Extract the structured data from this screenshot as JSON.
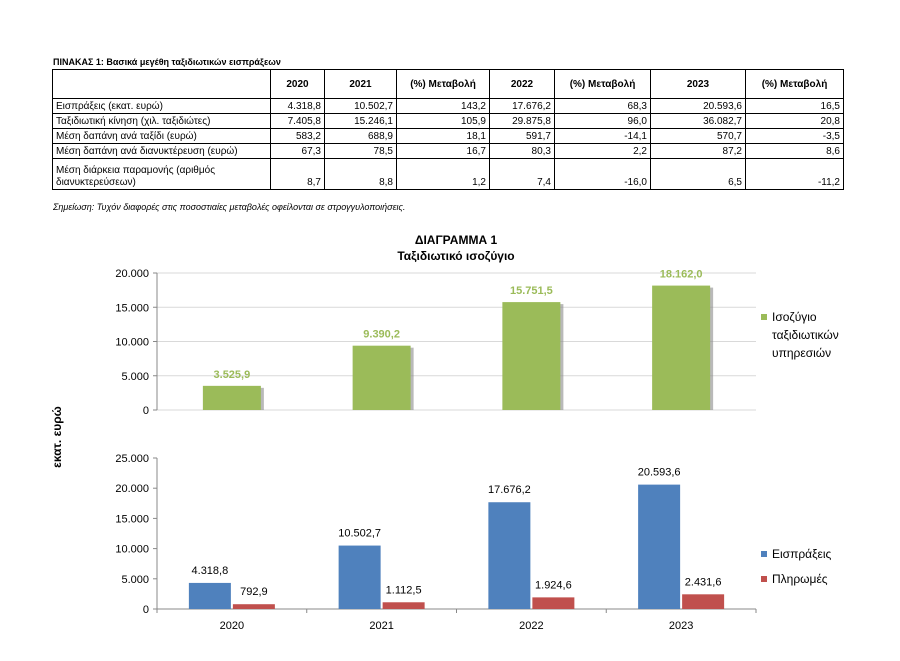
{
  "table": {
    "title": "ΠΙΝΑΚΑΣ 1: Βασικά μεγέθη ταξιδιωτικών εισπράξεων",
    "headers": [
      "",
      "2020",
      "2021",
      "(%) Μεταβολή",
      "2022",
      "(%) Μεταβολή",
      "2023",
      "(%) Μεταβολή"
    ],
    "rows": [
      {
        "label": "Εισπράξεις (εκατ. ευρώ)",
        "cells": [
          "4.318,8",
          "10.502,7",
          "143,2",
          "17.676,2",
          "68,3",
          "20.593,6",
          "16,5"
        ]
      },
      {
        "label": "Ταξιδιωτική κίνηση (χιλ. ταξιδιώτες)",
        "cells": [
          "7.405,8",
          "15.246,1",
          "105,9",
          "29.875,8",
          "96,0",
          "36.082,7",
          "20,8"
        ]
      },
      {
        "label": "Μέση δαπάνη ανά ταξίδι (ευρώ)",
        "cells": [
          "583,2",
          "688,9",
          "18,1",
          "591,7",
          "-14,1",
          "570,7",
          "-3,5"
        ]
      },
      {
        "label": "Μέση δαπάνη ανά διανυκτέρευση (ευρώ)",
        "cells": [
          "67,3",
          "78,5",
          "16,7",
          "80,3",
          "2,2",
          "87,2",
          "8,6"
        ]
      },
      {
        "label": "Μέση διάρκεια παραμονής (αριθμός διανυκτερεύσεων)",
        "cells": [
          "8,7",
          "8,8",
          "1,2",
          "7,4",
          "-16,0",
          "6,5",
          "-11,2"
        ]
      }
    ],
    "note": "Σημείωση: Τυχόν διαφορές στις ποσοστιαίες μεταβολές οφείλονται σε στρογγυλοποιήσεις."
  },
  "chart_data": [
    {
      "type": "bar",
      "title": "ΔΙΑΓΡΑΜΜΑ 1",
      "subtitle": "Ταξιδιωτικό ισοζύγιο",
      "ylabel": "εκατ. ευρώ",
      "categories": [
        "2020",
        "2021",
        "2022",
        "2023"
      ],
      "series": [
        {
          "name": "Ισοζύγιο ταξιδιωτικών υπηρεσιών",
          "values": [
            3525.9,
            9390.2,
            15751.5,
            18162.0
          ],
          "labels": [
            "3.525,9",
            "9.390,2",
            "15.751,5",
            "18.162,0"
          ],
          "color": "#9bbb59"
        }
      ],
      "ylim": [
        0,
        20000
      ],
      "yticks": [
        0,
        5000,
        10000,
        15000,
        20000
      ],
      "ytick_labels": [
        "0",
        "5.000",
        "10.000",
        "15.000",
        "20.000"
      ],
      "legend": "right"
    },
    {
      "type": "bar",
      "categories": [
        "2020",
        "2021",
        "2022",
        "2023"
      ],
      "series": [
        {
          "name": "Εισπράξεις",
          "values": [
            4318.8,
            10502.7,
            17676.2,
            20593.6
          ],
          "labels": [
            "4.318,8",
            "10.502,7",
            "17.676,2",
            "20.593,6"
          ],
          "color": "#4f81bd"
        },
        {
          "name": "Πληρωμές",
          "values": [
            792.9,
            1112.5,
            1924.6,
            2431.6
          ],
          "labels": [
            "792,9",
            "1.112,5",
            "1.924,6",
            "2.431,6"
          ],
          "color": "#c0504d"
        }
      ],
      "ylim": [
        0,
        25000
      ],
      "yticks": [
        0,
        5000,
        10000,
        15000,
        20000,
        25000
      ],
      "ytick_labels": [
        "0",
        "5.000",
        "10.000",
        "15.000",
        "20.000",
        "25.000"
      ],
      "legend": "right"
    }
  ]
}
